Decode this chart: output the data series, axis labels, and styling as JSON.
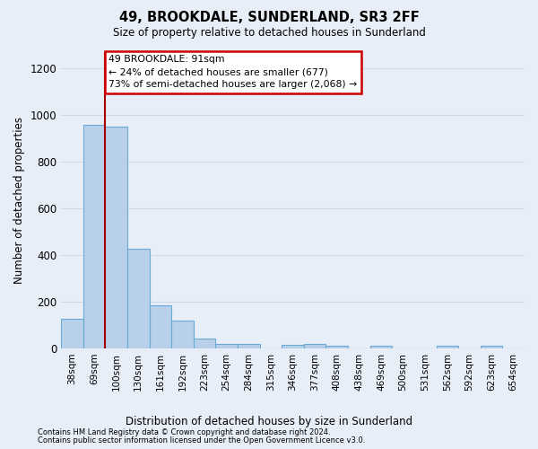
{
  "title": "49, BROOKDALE, SUNDERLAND, SR3 2FF",
  "subtitle": "Size of property relative to detached houses in Sunderland",
  "xlabel": "Distribution of detached houses by size in Sunderland",
  "ylabel": "Number of detached properties",
  "categories": [
    "38sqm",
    "69sqm",
    "100sqm",
    "130sqm",
    "161sqm",
    "192sqm",
    "223sqm",
    "254sqm",
    "284sqm",
    "315sqm",
    "346sqm",
    "377sqm",
    "408sqm",
    "438sqm",
    "469sqm",
    "500sqm",
    "531sqm",
    "562sqm",
    "592sqm",
    "623sqm",
    "654sqm"
  ],
  "values": [
    127,
    955,
    948,
    428,
    185,
    120,
    43,
    20,
    20,
    0,
    15,
    18,
    10,
    0,
    10,
    0,
    0,
    10,
    0,
    10,
    0
  ],
  "bar_color": "#b8d0ea",
  "bar_edge_color": "#6aaad4",
  "vline_index": 1.5,
  "annotation_text": "49 BROOKDALE: 91sqm\n← 24% of detached houses are smaller (677)\n73% of semi-detached houses are larger (2,068) →",
  "annotation_box_color": "#ffffff",
  "annotation_box_edge_color": "#cc0000",
  "vline_color": "#aa0000",
  "ylim": [
    0,
    1270
  ],
  "yticks": [
    0,
    200,
    400,
    600,
    800,
    1000,
    1200
  ],
  "footer_line1": "Contains HM Land Registry data © Crown copyright and database right 2024.",
  "footer_line2": "Contains public sector information licensed under the Open Government Licence v3.0.",
  "background_color": "#e8eef8",
  "plot_bg_color": "#e8eef8",
  "grid_color": "#d0d8e8"
}
